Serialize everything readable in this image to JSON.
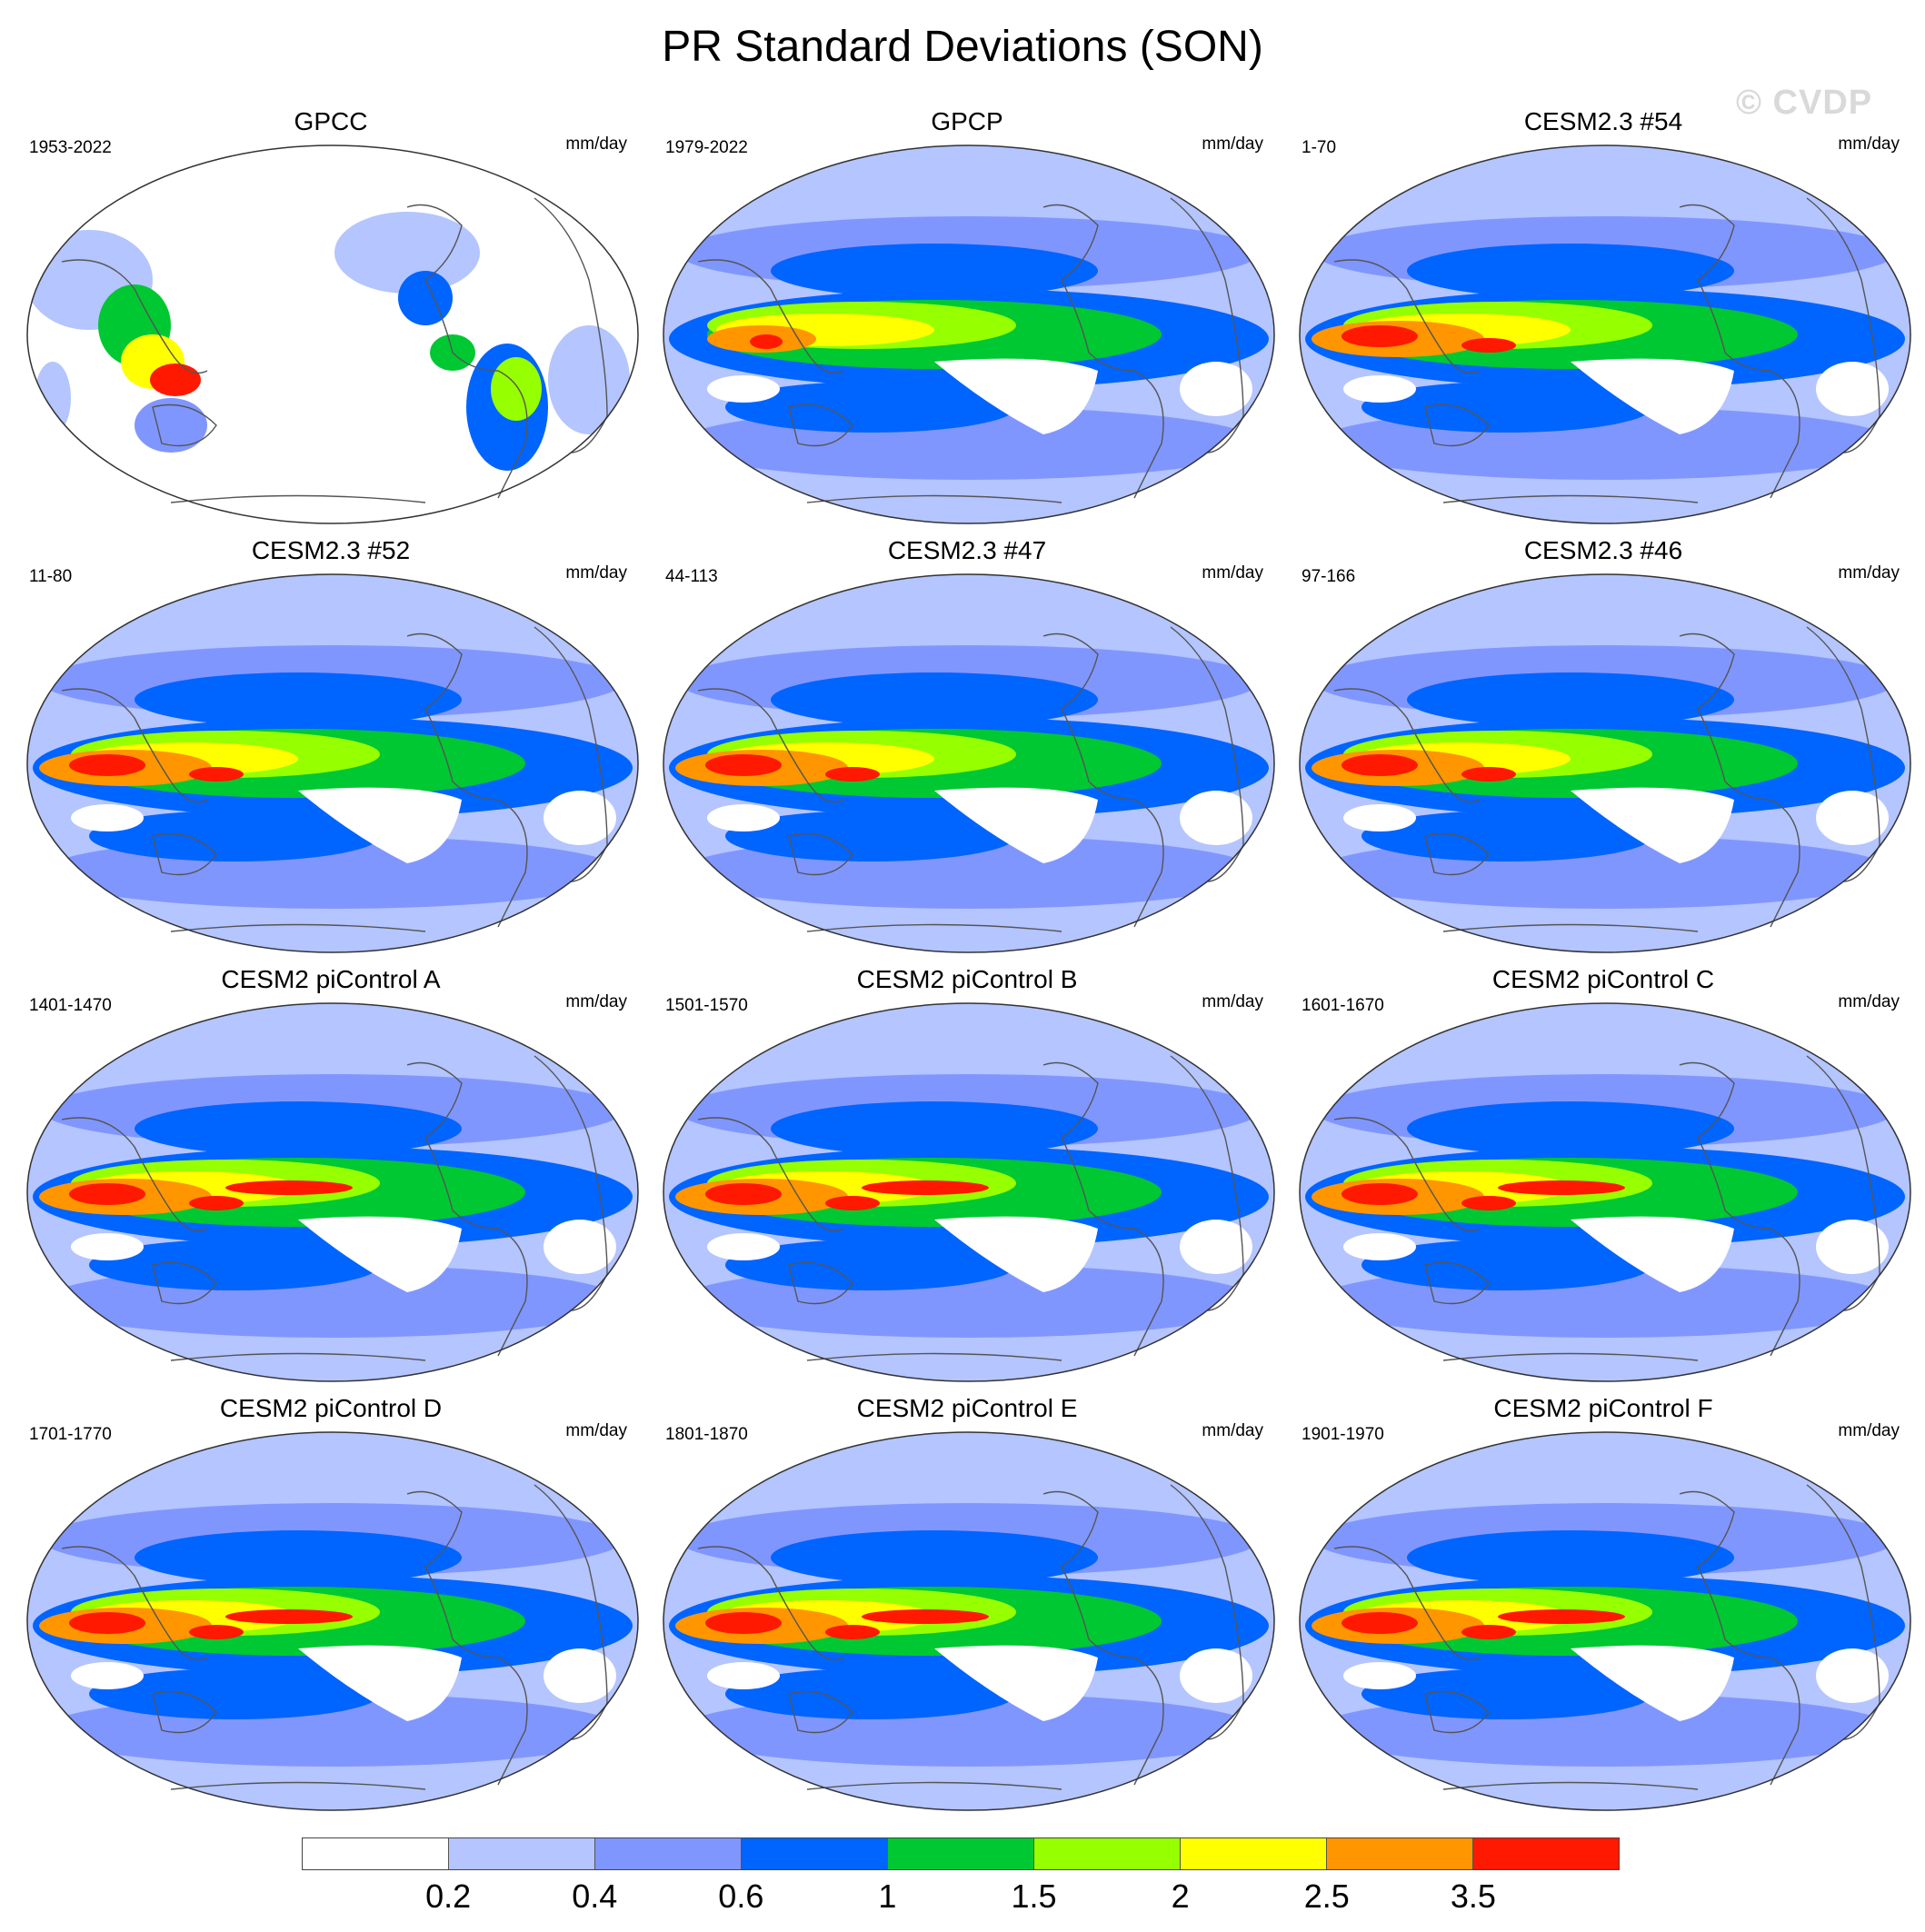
{
  "title": "PR Standard Deviations (SON)",
  "watermark": "© CVDP",
  "units": "mm/day",
  "panels": [
    {
      "name": "GPCC",
      "period": "1953-2022",
      "style": "land"
    },
    {
      "name": "GPCP",
      "period": "1979-2022",
      "style": "obs"
    },
    {
      "name": "CESM2.3 #54",
      "period": "1-70",
      "style": "model"
    },
    {
      "name": "CESM2.3 #52",
      "period": "11-80",
      "style": "model"
    },
    {
      "name": "CESM2.3 #47",
      "period": "44-113",
      "style": "model"
    },
    {
      "name": "CESM2.3 #46",
      "period": "97-166",
      "style": "model"
    },
    {
      "name": "CESM2 piControl A",
      "period": "1401-1470",
      "style": "pi"
    },
    {
      "name": "CESM2 piControl B",
      "period": "1501-1570",
      "style": "pi"
    },
    {
      "name": "CESM2 piControl C",
      "period": "1601-1670",
      "style": "pi"
    },
    {
      "name": "CESM2 piControl D",
      "period": "1701-1770",
      "style": "pi"
    },
    {
      "name": "CESM2 piControl E",
      "period": "1801-1870",
      "style": "pi"
    },
    {
      "name": "CESM2 piControl F",
      "period": "1901-1970",
      "style": "pi"
    }
  ],
  "colorbar": {
    "colors": [
      "#ffffff",
      "#b4c5ff",
      "#8096ff",
      "#0064ff",
      "#00c832",
      "#96ff00",
      "#ffff00",
      "#ff9600",
      "#ff1900"
    ],
    "labels": [
      "0.2",
      "0.4",
      "0.6",
      "1",
      "1.5",
      "2",
      "2.5",
      "3.5"
    ]
  }
}
